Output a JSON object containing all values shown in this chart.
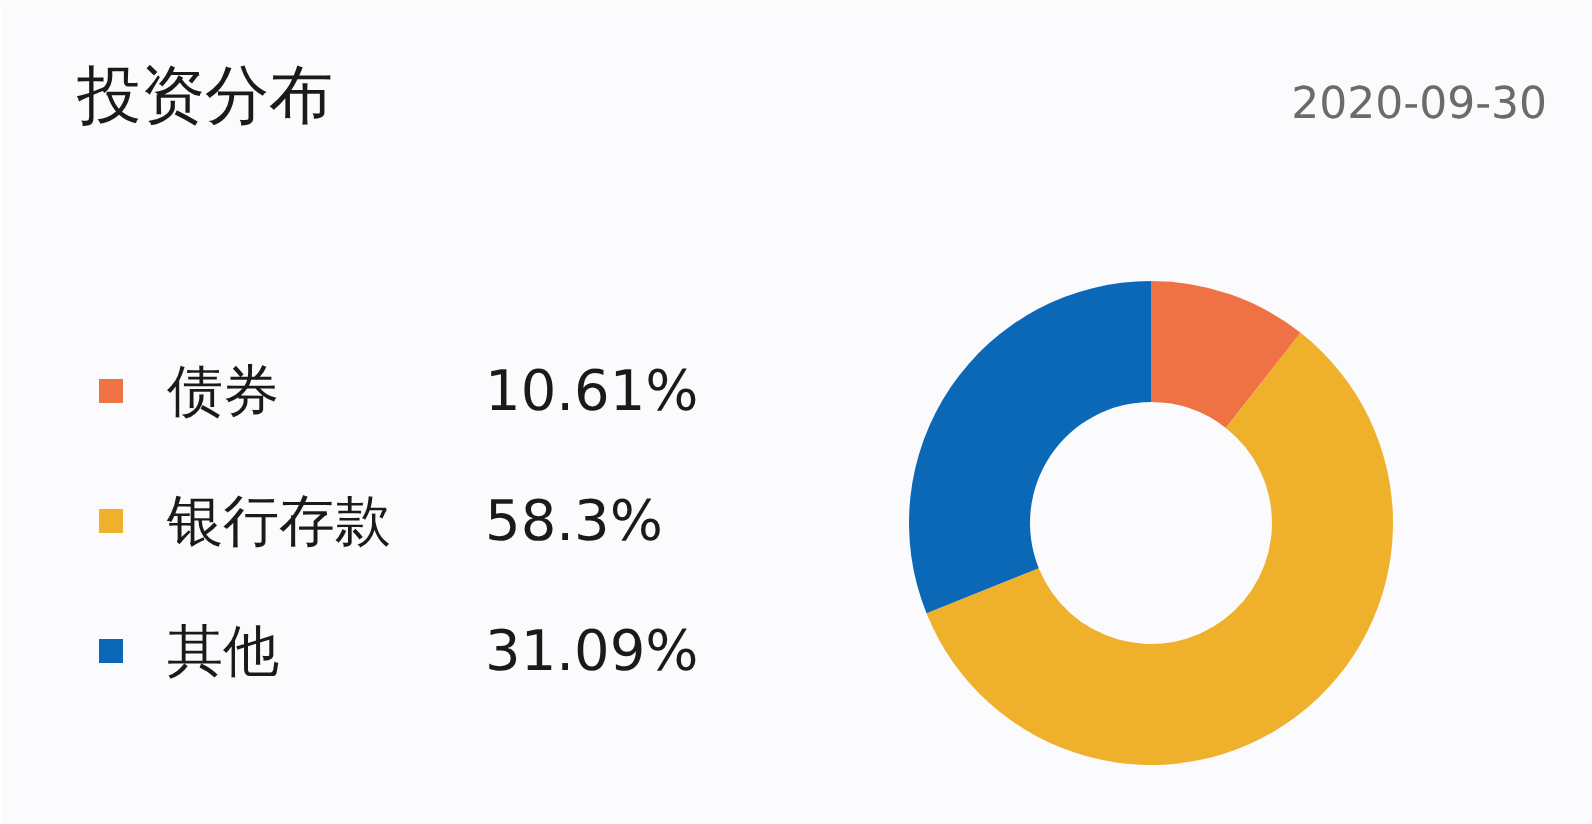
{
  "chart_data": {
    "type": "donut",
    "title": "投资分布",
    "subtitle": "2020-09-30",
    "categories": [
      "债券",
      "银行存款",
      "其他"
    ],
    "values": [
      10.61,
      58.3,
      31.09
    ],
    "value_labels": [
      "10.61%",
      "58.3%",
      "31.09%"
    ],
    "colors": [
      "#ee7244",
      "#efb02b",
      "#0b68b6"
    ],
    "legend": "left"
  }
}
